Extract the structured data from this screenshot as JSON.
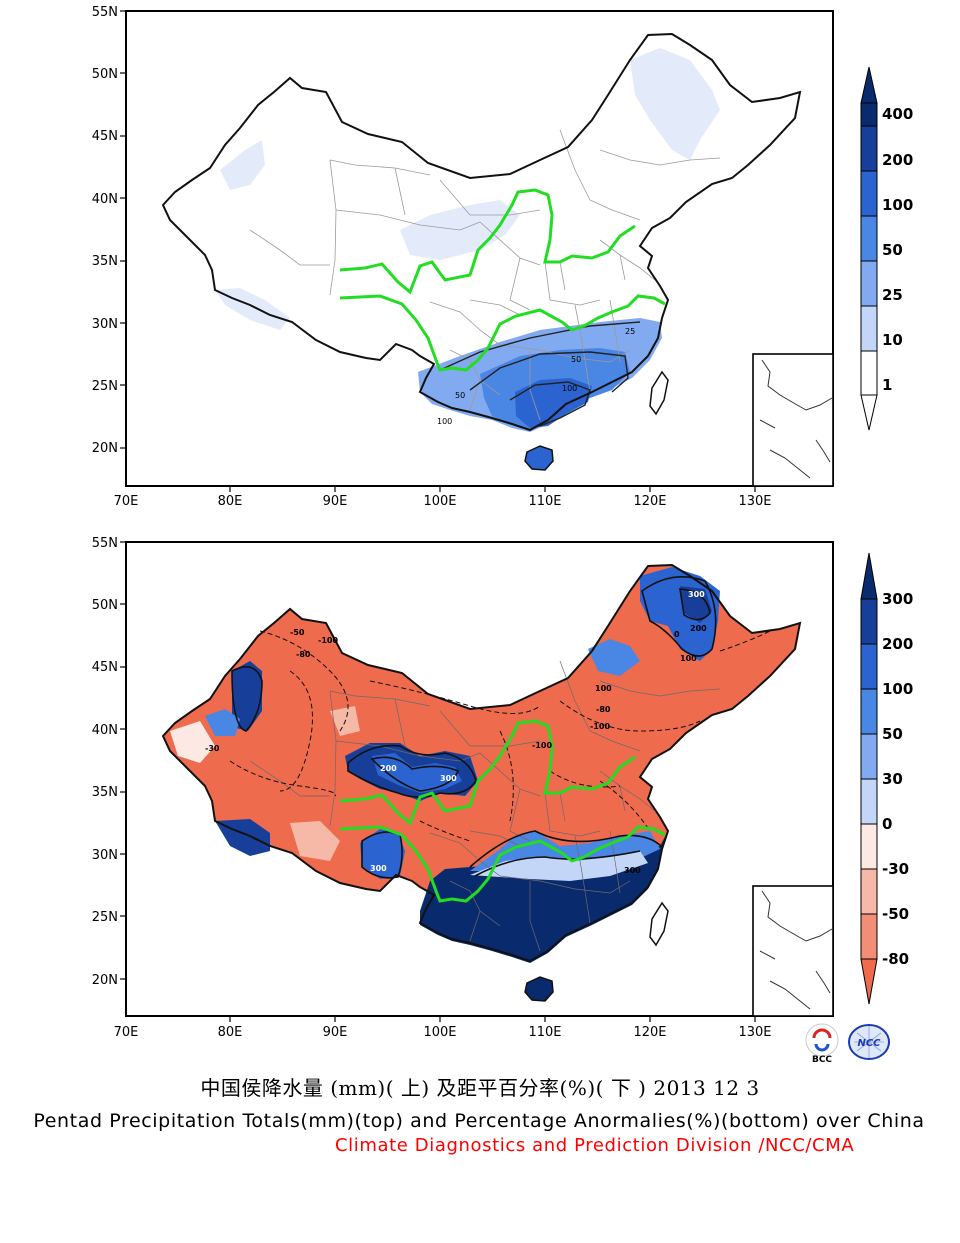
{
  "map_top": {
    "lat_ticks": [
      "55N",
      "50N",
      "45N",
      "40N",
      "35N",
      "30N",
      "25N",
      "20N"
    ],
    "lon_ticks": [
      "70E",
      "80E",
      "90E",
      "100E",
      "110E",
      "120E",
      "130E"
    ],
    "contour_labels": [
      "25",
      "50",
      "100",
      "50",
      "100"
    ],
    "colorbar": {
      "labels": [
        "400",
        "200",
        "100",
        "50",
        "25",
        "10",
        "1"
      ],
      "colors": [
        "#0a2a6e",
        "#173f9a",
        "#2b63d1",
        "#4a86e4",
        "#82aaf0",
        "#c4d6f8",
        "#ffffff"
      ]
    }
  },
  "map_bottom": {
    "lat_ticks": [
      "55N",
      "50N",
      "45N",
      "40N",
      "35N",
      "30N",
      "25N",
      "20N"
    ],
    "lon_ticks": [
      "70E",
      "80E",
      "90E",
      "100E",
      "110E",
      "120E",
      "130E"
    ],
    "contour_labels": [
      "300",
      "200",
      "100",
      "-100",
      "-80",
      "-50",
      "0",
      "-30",
      "200",
      "300",
      "300",
      "-100",
      "-100",
      "-80",
      "100",
      "300"
    ],
    "colorbar": {
      "labels": [
        "300",
        "200",
        "100",
        "50",
        "30",
        "0",
        "-30",
        "-50",
        "-80"
      ],
      "colors": [
        "#0a2a6e",
        "#173f9a",
        "#2b63d1",
        "#4a86e4",
        "#82aaf0",
        "#c4d6f8",
        "#fde9e3",
        "#f6b8a7",
        "#f28e78",
        "#ee6b4e"
      ]
    }
  },
  "colors": {
    "river": "#22dd22",
    "border": "#111111",
    "province": "#9a9a9a",
    "credit_text": "#ff0000"
  },
  "captions": {
    "chinese": "中国侯降水量 (mm)( 上) 及距平百分率(%)( 下 ) 2013 12 3",
    "english": "Pentad Precipitation Totals(mm)(top) and Percentage Anormalies(%)(bottom) over China",
    "credit": "Climate Diagnostics and Prediction Division /NCC/CMA"
  },
  "logos": [
    "BCC",
    "NCC"
  ]
}
